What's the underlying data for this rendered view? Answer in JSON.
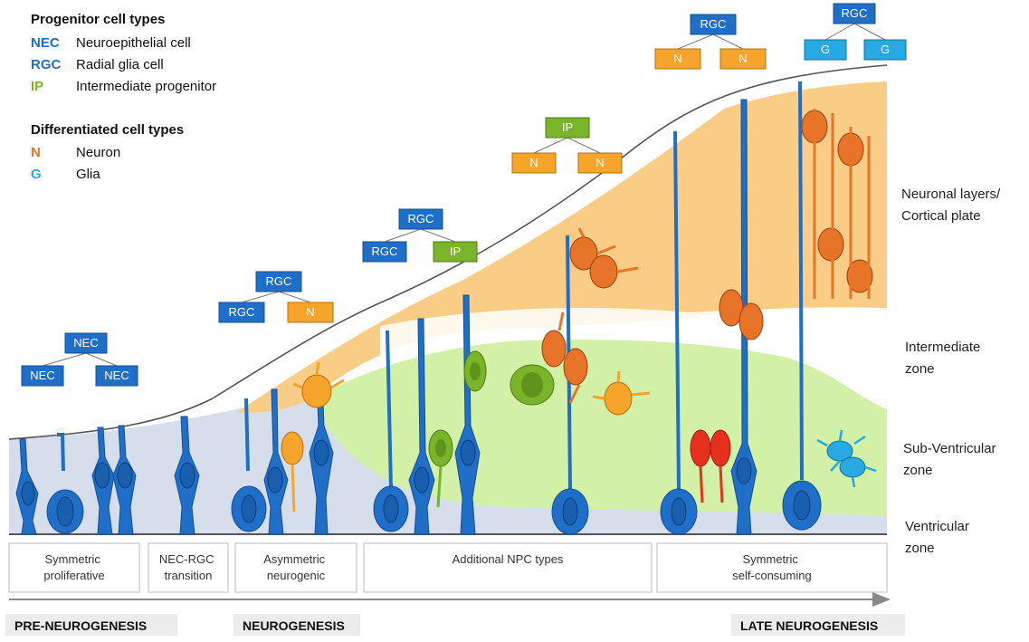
{
  "legend": {
    "progenitor_title": "Progenitor cell types",
    "progenitors": [
      {
        "abbr": "NEC",
        "name": "Neuroepithelial cell",
        "color": "#1f6fc9"
      },
      {
        "abbr": "RGC",
        "name": "Radial glia cell",
        "color": "#1f6fc9"
      },
      {
        "abbr": "IP",
        "name": "Intermediate progenitor",
        "color": "#7ab42a"
      }
    ],
    "differentiated_title": "Differentiated cell types",
    "differentiated": [
      {
        "abbr": "N",
        "name": "Neuron",
        "color": "#e8742a"
      },
      {
        "abbr": "G",
        "name": "Glia",
        "color": "#27a9e1"
      }
    ]
  },
  "lineage_trees": [
    {
      "parent": "NEC",
      "children": [
        "NEC",
        "NEC"
      ]
    },
    {
      "parent": "RGC",
      "children": [
        "RGC",
        "N"
      ]
    },
    {
      "parent": "RGC",
      "children": [
        "RGC",
        "IP"
      ]
    },
    {
      "parent": "IP",
      "children": [
        "N",
        "N"
      ]
    },
    {
      "parent": "RGC",
      "children": [
        "N",
        "N"
      ]
    },
    {
      "parent": "RGC",
      "children": [
        "G",
        "G"
      ]
    }
  ],
  "zones": [
    {
      "lines": [
        "Neuronal layers/",
        "Cortical plate"
      ]
    },
    {
      "lines": [
        "Intermediate",
        "zone"
      ]
    },
    {
      "lines": [
        "Sub-Ventricular",
        "zone"
      ]
    },
    {
      "lines": [
        "Ventricular",
        "zone"
      ]
    }
  ],
  "phases": [
    {
      "lines": [
        "Symmetric",
        "proliferative"
      ]
    },
    {
      "lines": [
        "NEC-RGC",
        "transition"
      ]
    },
    {
      "lines": [
        "Asymmetric",
        "neurogenic"
      ]
    },
    {
      "lines": [
        "Additional NPC types"
      ]
    },
    {
      "lines": [
        "Symmetric",
        "self-consuming"
      ]
    }
  ],
  "stages": [
    "PRE-NEUROGENESIS",
    "NEUROGENESIS",
    "LATE NEUROGENESIS"
  ],
  "colors": {
    "nec_rgc_box": "#1f6fc9",
    "ip_box": "#7ab42a",
    "neuron_box": "#f6a52a",
    "glia_box": "#27a9e1",
    "ventricular_zone": "#d7deeb",
    "subventricular_zone": "#d3f0a7",
    "cortical_plate": "#f9cd86",
    "progenitor_cell": "#1f6fc9",
    "neuron_cell": "#e8742a",
    "ip_cell": "#7ab42a",
    "glia_cell": "#27a9e1"
  }
}
